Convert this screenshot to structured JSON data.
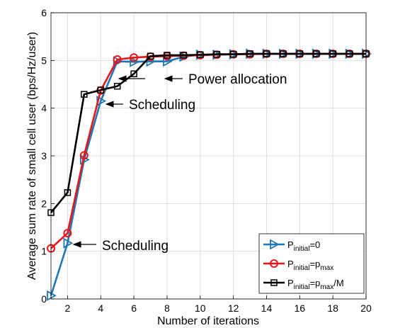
{
  "chart_data": {
    "type": "line",
    "xlabel": "Number of iterations",
    "ylabel": "Average sum rate  of small cell user  (bps/Hz/user)",
    "xlim": [
      1,
      20
    ],
    "ylim": [
      0,
      6
    ],
    "xticks": [
      2,
      4,
      6,
      8,
      10,
      12,
      14,
      16,
      18,
      20
    ],
    "yticks": [
      0,
      1,
      2,
      3,
      4,
      5,
      6
    ],
    "grid": true,
    "legend_position": "bottom-right",
    "x": [
      1,
      2,
      3,
      4,
      5,
      6,
      7,
      8,
      9,
      10,
      11,
      12,
      13,
      14,
      15,
      16,
      17,
      18,
      19,
      20
    ],
    "series": [
      {
        "legend": {
          "base": "P",
          "sub": "initial",
          "rest": "=0"
        },
        "color": "#1f77b4",
        "marker": "triangle-right",
        "values": [
          0.07,
          1.17,
          2.92,
          4.15,
          4.98,
          4.97,
          4.98,
          4.98,
          5.08,
          5.12,
          5.12,
          5.13,
          5.14,
          5.14,
          5.14,
          5.14,
          5.14,
          5.14,
          5.14,
          5.14
        ]
      },
      {
        "legend": {
          "base": "P",
          "sub": "initial",
          "rest": "=p",
          "sub2": "max",
          "rest2": ""
        },
        "color": "#e8161b",
        "marker": "circle",
        "values": [
          1.06,
          1.38,
          3.01,
          4.37,
          5.02,
          5.06,
          5.08,
          5.09,
          5.1,
          5.11,
          5.12,
          5.13,
          5.13,
          5.14,
          5.14,
          5.14,
          5.14,
          5.14,
          5.14,
          5.14
        ]
      },
      {
        "legend": {
          "base": "P",
          "sub": "initial",
          "rest": "=p",
          "sub2": "max",
          "rest2": "/M"
        },
        "color": "#000000",
        "marker": "square",
        "values": [
          1.81,
          2.23,
          4.29,
          4.38,
          4.46,
          4.72,
          5.09,
          5.11,
          5.11,
          5.12,
          5.13,
          5.13,
          5.14,
          5.14,
          5.14,
          5.14,
          5.14,
          5.14,
          5.14,
          5.14
        ]
      }
    ],
    "annotations": [
      {
        "text": "Power allocation",
        "arrow": "both-left"
      },
      {
        "text": "Scheduling",
        "arrow": "left-of-text"
      },
      {
        "text": "Scheduling",
        "arrow": "left-of-text"
      }
    ]
  }
}
